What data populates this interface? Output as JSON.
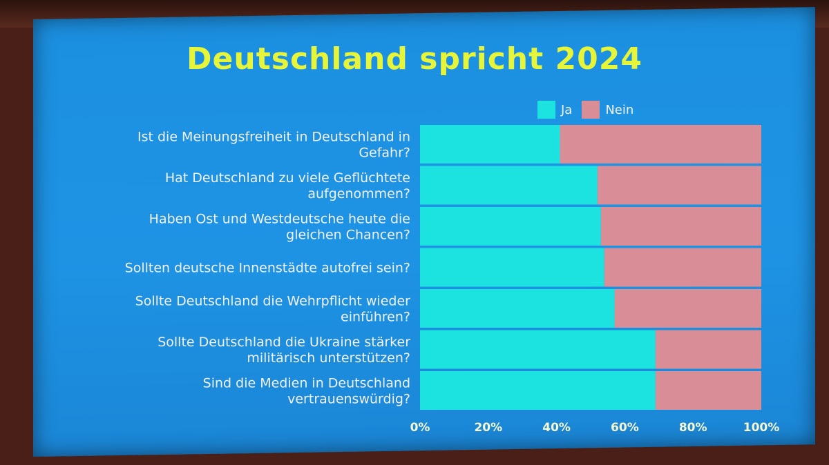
{
  "chart_data": {
    "type": "bar",
    "orientation": "horizontal",
    "stacked": true,
    "title": "Deutschland spricht 2024",
    "categories": [
      [
        "Ist die Meinungsfreiheit in Deutschland in",
        "Gefahr?"
      ],
      [
        "Hat Deutschland zu viele Geflüchtete",
        "aufgenommen?"
      ],
      [
        "Haben Ost und Westdeutsche heute die",
        "gleichen Chancen?"
      ],
      [
        "Sollten deutsche Innenstädte autofrei sein?"
      ],
      [
        "Sollte Deutschland die Wehrpflicht wieder",
        "einführen?"
      ],
      [
        "Sollte Deutschland die Ukraine stärker",
        "militärisch unterstützen?"
      ],
      [
        "Sind die Medien in Deutschland",
        "vertrauenswürdig?"
      ]
    ],
    "series": [
      {
        "name": "Ja",
        "color": "#1de3e0",
        "values": [
          41,
          52,
          53,
          54,
          57,
          69,
          69
        ]
      },
      {
        "name": "Nein",
        "color": "#d98e97",
        "values": [
          59,
          48,
          47,
          46,
          43,
          31,
          31
        ]
      }
    ],
    "xlim": [
      0,
      100
    ],
    "xticks": [
      "0%",
      "20%",
      "40%",
      "60%",
      "80%",
      "100%"
    ],
    "legend_position": "top-right",
    "grid": false
  },
  "colors": {
    "background": "#1e93e4",
    "title": "#e6f53a"
  }
}
